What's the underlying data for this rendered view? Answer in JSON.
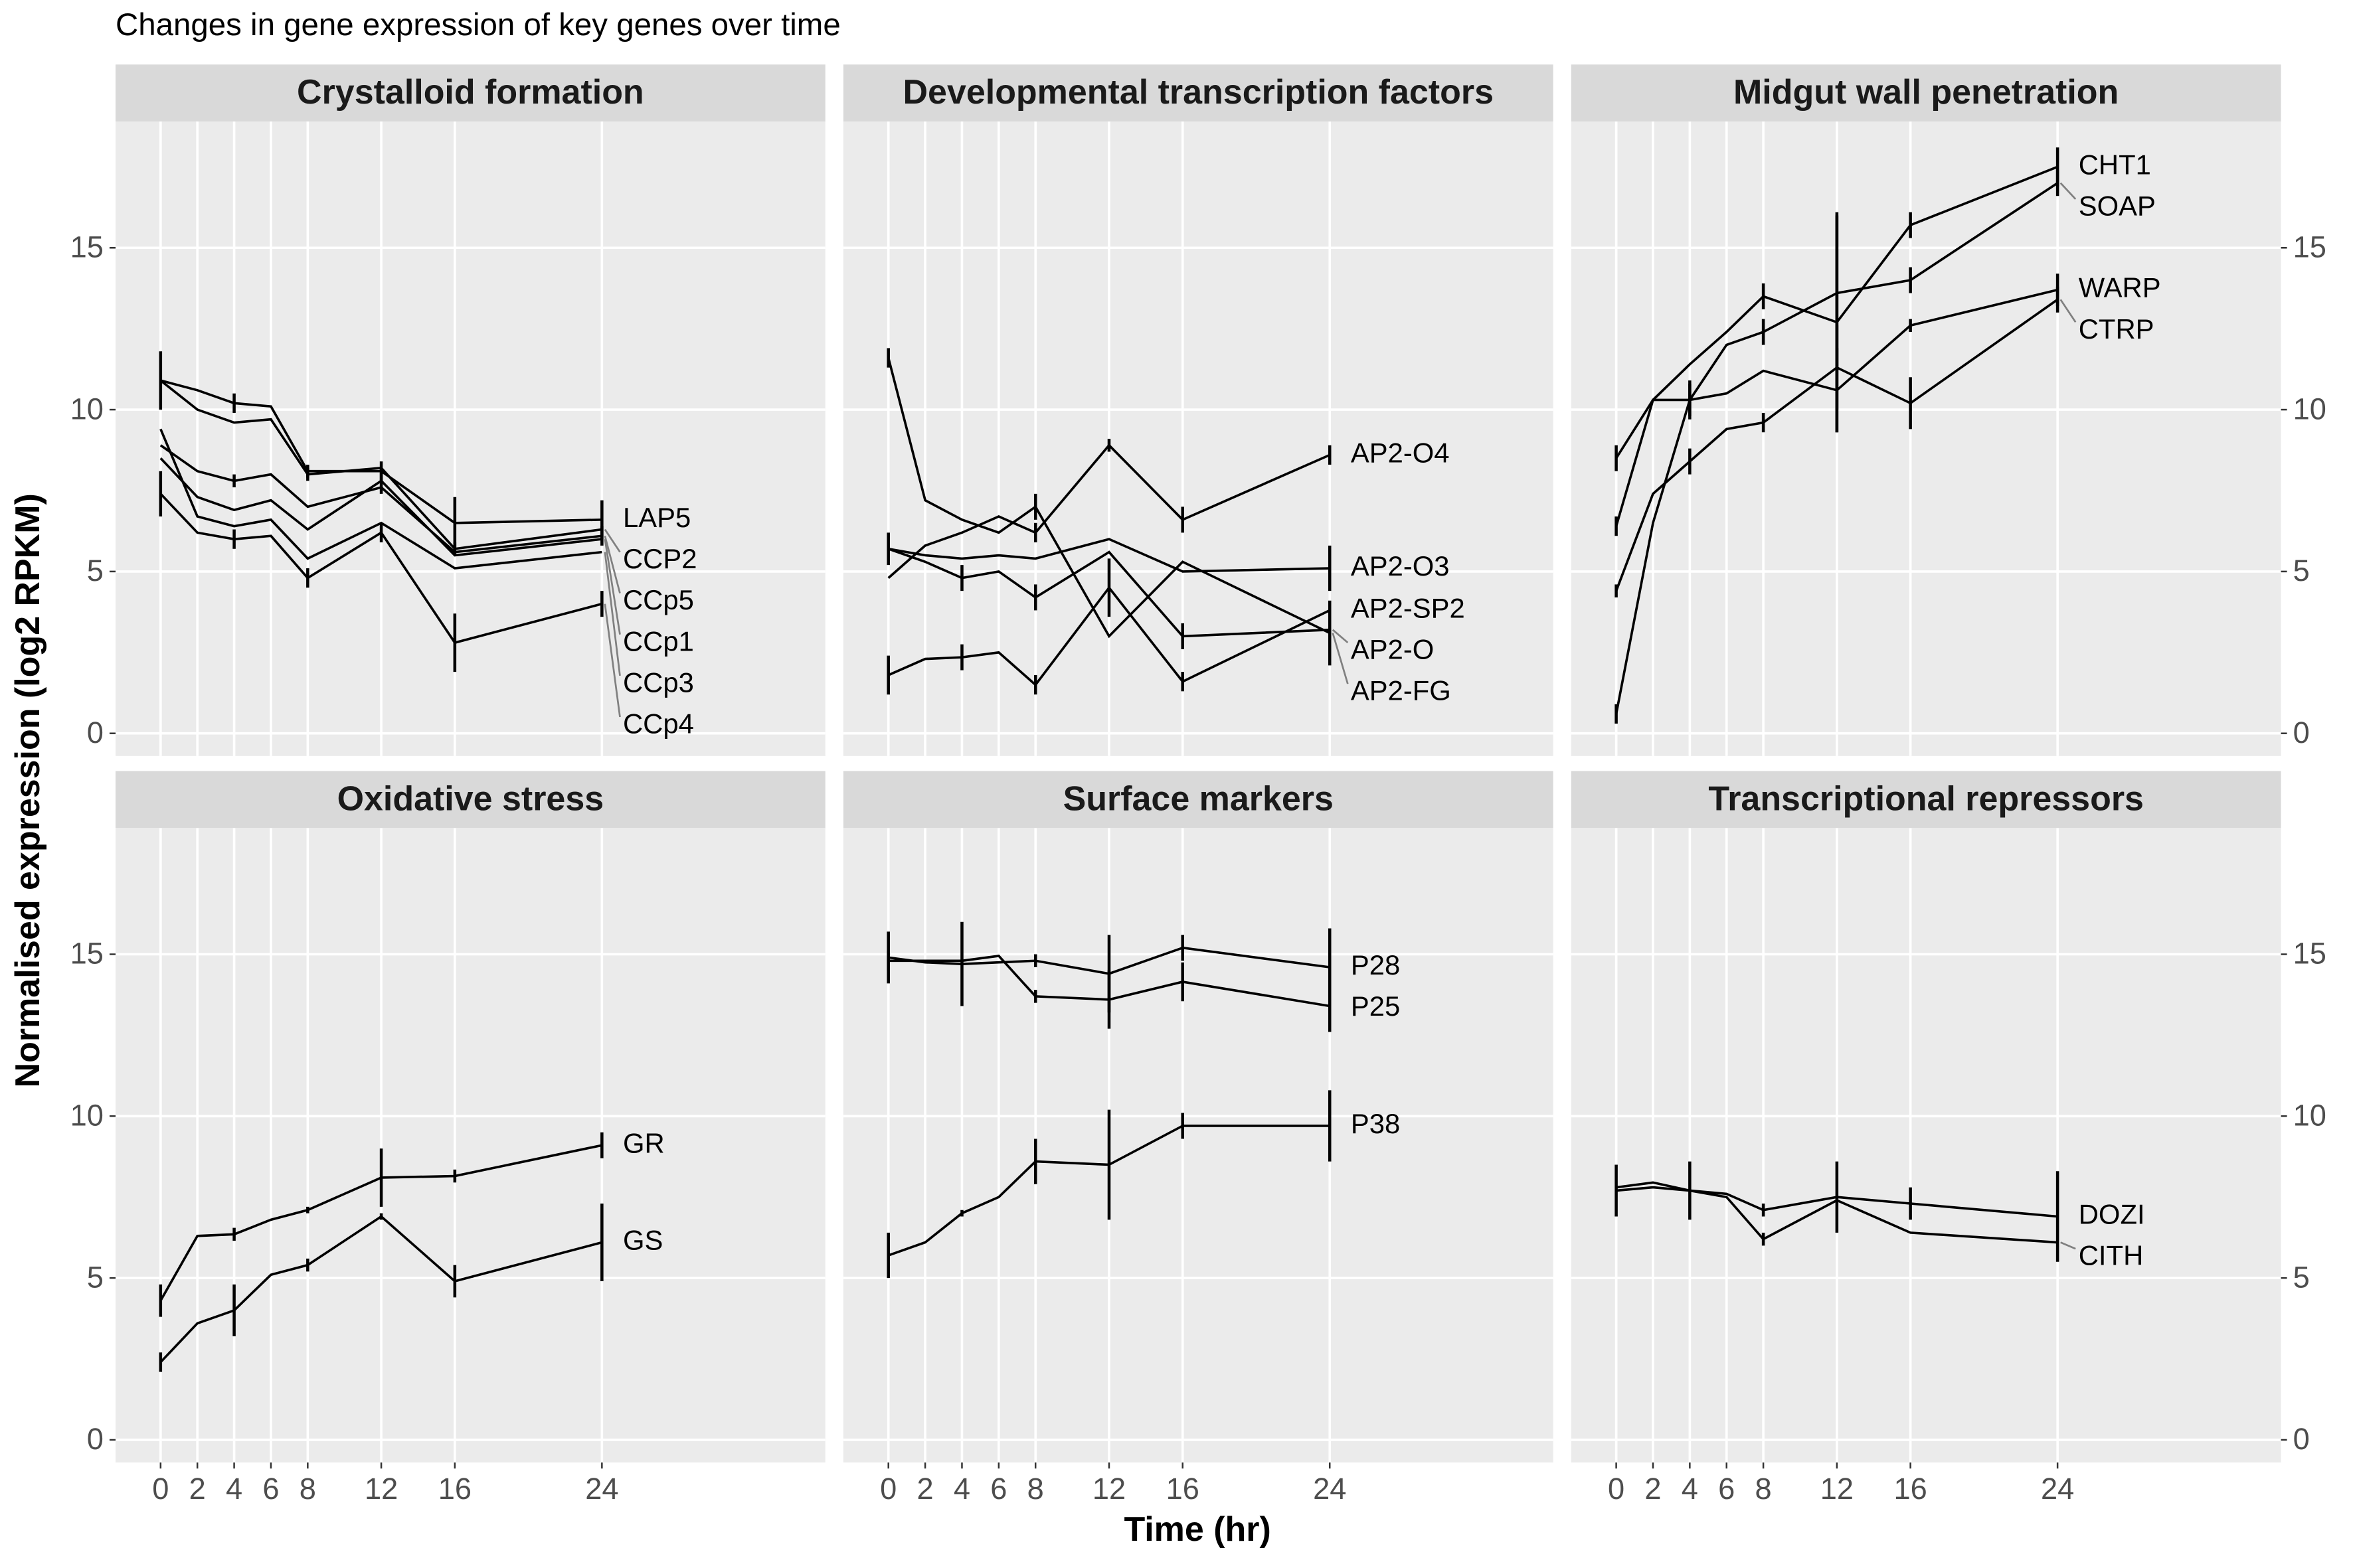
{
  "title": "Changes in gene expression of key genes over time",
  "xlabel": "Time (hr)",
  "ylabel": "Normalised expression (log2 RPKM)",
  "chart_data": [
    {
      "type": "line",
      "title": "Crystalloid formation",
      "color": "#000000",
      "grid": true,
      "x": [
        0,
        2,
        4,
        6,
        8,
        12,
        16,
        24
      ],
      "xlim": [
        -2.45,
        36.15
      ],
      "ylim": [
        -0.7,
        18.9
      ],
      "xticks": [
        0,
        2,
        4,
        6,
        8,
        12,
        16,
        24
      ],
      "yticks": [
        0,
        5,
        10,
        15
      ],
      "series": [
        {
          "name": "LAP5",
          "values": [
            10.9,
            10.6,
            10.2,
            10.1,
            8.1,
            8.1,
            6.5,
            6.6
          ],
          "errors": [
            0.9,
            null,
            0.3,
            null,
            0.2,
            0.3,
            0.8,
            0.6
          ]
        },
        {
          "name": "CCP2",
          "values": [
            10.9,
            10.0,
            9.6,
            9.7,
            8.0,
            8.2,
            5.7,
            6.3
          ],
          "errors": [
            null,
            null,
            null,
            null,
            0.2,
            null,
            0.2,
            null
          ]
        },
        {
          "name": "CCp5",
          "values": [
            8.9,
            8.1,
            7.8,
            8.0,
            7.0,
            7.6,
            5.6,
            6.1
          ],
          "errors": [
            null,
            null,
            0.2,
            null,
            null,
            null,
            null,
            0.3
          ]
        },
        {
          "name": "CCp1",
          "values": [
            8.5,
            7.3,
            6.9,
            7.2,
            6.3,
            7.8,
            5.5,
            6.0
          ],
          "errors": [
            null,
            null,
            null,
            null,
            null,
            0.4,
            null,
            null
          ]
        },
        {
          "name": "CCp3",
          "values": [
            9.4,
            6.7,
            6.4,
            6.6,
            5.4,
            6.5,
            5.1,
            5.6
          ],
          "errors": [
            null,
            null,
            null,
            null,
            null,
            null,
            null,
            null
          ]
        },
        {
          "name": "CCp4",
          "values": [
            7.4,
            6.2,
            6.0,
            6.1,
            4.8,
            6.2,
            2.8,
            4.0
          ],
          "errors": [
            0.7,
            null,
            0.3,
            null,
            0.3,
            0.3,
            0.9,
            0.4
          ]
        }
      ]
    },
    {
      "type": "line",
      "title": "Developmental transcription factors",
      "color": "#000000",
      "grid": true,
      "x": [
        0,
        2,
        4,
        6,
        8,
        12,
        16,
        24
      ],
      "xlim": [
        -2.45,
        36.15
      ],
      "ylim": [
        -0.7,
        18.9
      ],
      "xticks": [
        0,
        2,
        4,
        6,
        8,
        12,
        16,
        24
      ],
      "yticks": [
        0,
        5,
        10,
        15
      ],
      "series": [
        {
          "name": "AP2-O4",
          "values": [
            4.8,
            5.8,
            6.2,
            6.7,
            6.2,
            8.9,
            6.6,
            8.6
          ],
          "errors": [
            null,
            null,
            null,
            null,
            0.3,
            0.2,
            0.4,
            0.3
          ]
        },
        {
          "name": "AP2-O3",
          "values": [
            5.7,
            5.5,
            5.4,
            5.5,
            5.4,
            6.0,
            5.0,
            5.1
          ],
          "errors": [
            0.5,
            null,
            null,
            null,
            null,
            null,
            null,
            0.7
          ]
        },
        {
          "name": "AP2-SP2",
          "values": [
            1.8,
            2.3,
            2.35,
            2.5,
            1.5,
            4.5,
            1.6,
            3.8
          ],
          "errors": [
            0.6,
            null,
            0.4,
            null,
            0.3,
            0.9,
            0.3,
            null
          ]
        },
        {
          "name": "AP2-FG",
          "values": [
            11.6,
            7.2,
            6.6,
            6.2,
            7.0,
            3.0,
            5.3,
            3.1
          ],
          "errors": [
            0.3,
            null,
            null,
            null,
            0.4,
            null,
            null,
            1.0
          ]
        },
        {
          "name": "AP2-O",
          "values": [
            5.7,
            5.3,
            4.8,
            5.0,
            4.2,
            5.6,
            3.0,
            3.2
          ],
          "errors": [
            null,
            null,
            0.4,
            null,
            0.4,
            null,
            0.4,
            null
          ]
        }
      ]
    },
    {
      "type": "line",
      "title": "Midgut wall penetration",
      "color": "#000000",
      "grid": true,
      "x": [
        0,
        2,
        4,
        6,
        8,
        12,
        16,
        24
      ],
      "xlim": [
        -2.45,
        36.15
      ],
      "ylim": [
        -0.7,
        18.9
      ],
      "xticks": [
        0,
        2,
        4,
        6,
        8,
        12,
        16,
        24
      ],
      "yticks": [
        0,
        5,
        10,
        15
      ],
      "series": [
        {
          "name": "CHT1",
          "values": [
            8.5,
            10.3,
            11.4,
            12.4,
            13.5,
            12.7,
            15.7,
            17.5
          ],
          "errors": [
            0.4,
            null,
            null,
            null,
            0.4,
            3.4,
            0.4,
            0.6
          ]
        },
        {
          "name": "SOAP",
          "values": [
            0.6,
            6.5,
            10.3,
            12.0,
            12.4,
            13.6,
            14.0,
            17.0
          ],
          "errors": [
            0.3,
            null,
            0.6,
            null,
            0.4,
            2.4,
            0.4,
            0.4
          ]
        },
        {
          "name": "WARP",
          "values": [
            6.4,
            10.3,
            10.3,
            10.5,
            11.2,
            10.6,
            12.6,
            13.7
          ],
          "errors": [
            0.3,
            null,
            0.5,
            null,
            null,
            1.3,
            0.2,
            0.5
          ]
        },
        {
          "name": "CTRP",
          "values": [
            4.4,
            7.4,
            8.4,
            9.4,
            9.6,
            11.3,
            10.2,
            13.4
          ],
          "errors": [
            0.2,
            null,
            0.4,
            null,
            0.3,
            1.3,
            0.8,
            0.4
          ]
        }
      ]
    },
    {
      "type": "line",
      "title": "Oxidative stress",
      "color": "#000000",
      "grid": true,
      "x": [
        0,
        2,
        4,
        6,
        8,
        12,
        16,
        24
      ],
      "xlim": [
        -2.45,
        36.15
      ],
      "ylim": [
        -0.7,
        18.9
      ],
      "xticks": [
        0,
        2,
        4,
        6,
        8,
        12,
        16,
        24
      ],
      "yticks": [
        0,
        5,
        10,
        15
      ],
      "series": [
        {
          "name": "GR",
          "values": [
            4.3,
            6.3,
            6.35,
            6.8,
            7.1,
            8.1,
            8.15,
            9.1
          ],
          "errors": [
            0.5,
            null,
            0.2,
            null,
            0.1,
            0.9,
            0.2,
            0.4
          ]
        },
        {
          "name": "GS",
          "values": [
            2.4,
            3.6,
            4.0,
            5.1,
            5.4,
            6.9,
            4.9,
            6.1
          ],
          "errors": [
            0.3,
            null,
            0.8,
            null,
            0.2,
            0.1,
            0.5,
            1.2
          ]
        }
      ]
    },
    {
      "type": "line",
      "title": "Surface markers",
      "color": "#000000",
      "grid": true,
      "x": [
        0,
        2,
        4,
        6,
        8,
        12,
        16,
        24
      ],
      "xlim": [
        -2.45,
        36.15
      ],
      "ylim": [
        -0.7,
        18.9
      ],
      "xticks": [
        0,
        2,
        4,
        6,
        8,
        12,
        16,
        24
      ],
      "yticks": [
        0,
        5,
        10,
        15
      ],
      "series": [
        {
          "name": "P28",
          "values": [
            14.9,
            14.75,
            14.7,
            14.75,
            14.8,
            14.4,
            15.2,
            14.6
          ],
          "errors": [
            0.8,
            null,
            1.3,
            null,
            0.2,
            1.2,
            0.4,
            1.2
          ]
        },
        {
          "name": "P25",
          "values": [
            14.8,
            14.8,
            14.8,
            14.95,
            13.7,
            13.6,
            14.15,
            13.4
          ],
          "errors": [
            0.3,
            null,
            null,
            null,
            0.2,
            0.9,
            0.6,
            0.8
          ]
        },
        {
          "name": "P38",
          "values": [
            5.7,
            6.1,
            7.0,
            7.5,
            8.6,
            8.5,
            9.7,
            9.7
          ],
          "errors": [
            0.7,
            null,
            0.1,
            null,
            0.7,
            1.7,
            0.4,
            1.1
          ]
        }
      ]
    },
    {
      "type": "line",
      "title": "Transcriptional repressors",
      "color": "#000000",
      "grid": true,
      "x": [
        0,
        2,
        4,
        6,
        8,
        12,
        16,
        24
      ],
      "xlim": [
        -2.45,
        36.15
      ],
      "ylim": [
        -0.7,
        18.9
      ],
      "xticks": [
        0,
        2,
        4,
        6,
        8,
        12,
        16,
        24
      ],
      "yticks": [
        0,
        5,
        10,
        15
      ],
      "series": [
        {
          "name": "DOZI",
          "values": [
            7.7,
            7.8,
            7.7,
            7.6,
            7.1,
            7.5,
            7.3,
            6.9
          ],
          "errors": [
            0.8,
            null,
            0.9,
            null,
            0.2,
            1.1,
            0.5,
            1.4
          ]
        },
        {
          "name": "CITH",
          "values": [
            7.8,
            7.95,
            7.7,
            7.5,
            6.2,
            7.4,
            6.4,
            6.1
          ],
          "errors": [
            null,
            null,
            null,
            null,
            0.2,
            null,
            null,
            null
          ]
        }
      ]
    }
  ]
}
